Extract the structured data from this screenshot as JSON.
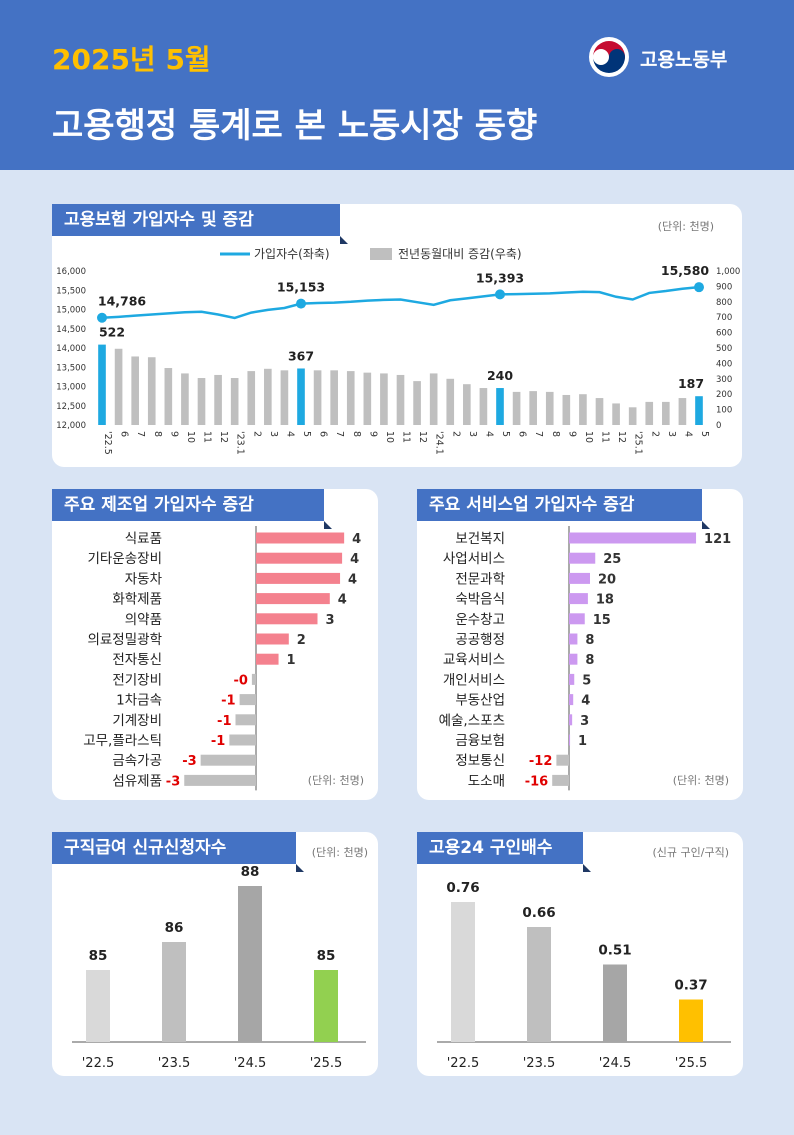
{
  "header": {
    "date": "2025년 5월",
    "title": "고용행정 통계로 본 노동시장 동향",
    "org": "고용노동부"
  },
  "colors": {
    "header_bg": "#4472c4",
    "accent_blue": "#1ea9e1",
    "gray_bar": "#bfbfbf",
    "red_bar": "#f4818e",
    "purple_bar": "#cc99f0",
    "green_bar": "#92d050",
    "yellow_bar": "#ffc000",
    "negative_text": "#e00000"
  },
  "chart_data": [
    {
      "id": "insurance",
      "type": "line+bar",
      "title": "고용보험 가입자수 및 증감",
      "unit": "(단위: 천명)",
      "legend": [
        "가입자수(좌축)",
        "전년동월대비 증감(우축)"
      ],
      "x": [
        "'22.5",
        "6",
        "7",
        "8",
        "9",
        "10",
        "11",
        "12",
        "'23.1",
        "2",
        "3",
        "4",
        "5",
        "6",
        "7",
        "8",
        "9",
        "10",
        "11",
        "12",
        "'24.1",
        "2",
        "3",
        "4",
        "5",
        "6",
        "7",
        "8",
        "9",
        "10",
        "11",
        "12",
        "'25.1",
        "2",
        "3",
        "4",
        "5"
      ],
      "line_values": [
        14786,
        14810,
        14840,
        14870,
        14900,
        14930,
        14940,
        14870,
        14780,
        14920,
        14990,
        15040,
        15153,
        15170,
        15180,
        15200,
        15230,
        15250,
        15260,
        15190,
        15120,
        15240,
        15290,
        15340,
        15393,
        15400,
        15410,
        15420,
        15440,
        15460,
        15450,
        15330,
        15260,
        15430,
        15480,
        15540,
        15580
      ],
      "bar_values": [
        522,
        495,
        445,
        440,
        370,
        335,
        305,
        325,
        305,
        350,
        365,
        355,
        367,
        355,
        355,
        350,
        340,
        335,
        325,
        285,
        335,
        300,
        265,
        240,
        240,
        215,
        220,
        215,
        195,
        200,
        175,
        140,
        115,
        150,
        150,
        175,
        187
      ],
      "highlight_indices": [
        0,
        12,
        24,
        36
      ],
      "line_labels": [
        {
          "index": 0,
          "text": "14,786"
        },
        {
          "index": 12,
          "text": "15,153"
        },
        {
          "index": 24,
          "text": "15,393"
        },
        {
          "index": 36,
          "text": "15,580"
        }
      ],
      "bar_labels": [
        {
          "index": 0,
          "text": "522"
        },
        {
          "index": 12,
          "text": "367"
        },
        {
          "index": 24,
          "text": "240"
        },
        {
          "index": 36,
          "text": "187"
        }
      ],
      "y_left": {
        "min": 12000,
        "max": 16000,
        "ticks": [
          "12,000",
          "12,500",
          "13,000",
          "13,500",
          "14,000",
          "14,500",
          "15,000",
          "15,500",
          "16,000"
        ]
      },
      "y_right": {
        "min": 0,
        "max": 1000,
        "ticks": [
          "0",
          "100",
          "200",
          "300",
          "400",
          "500",
          "600",
          "700",
          "800",
          "900",
          "1,000"
        ]
      }
    },
    {
      "id": "manufacturing",
      "type": "hbar",
      "title": "주요 제조업 가입자수 증감",
      "unit": "(단위: 천명)",
      "categories": [
        "식료품",
        "기타운송장비",
        "자동차",
        "화학제품",
        "의약품",
        "의료정밀광학",
        "전자통신",
        "전기장비",
        "1차금속",
        "기계장비",
        "고무,플라스틱",
        "금속가공",
        "섬유제품"
      ],
      "values": [
        4.3,
        4.2,
        4.1,
        3.6,
        3.0,
        1.6,
        1.1,
        -0.2,
        -0.8,
        -1.0,
        -1.3,
        -2.7,
        -3.5
      ],
      "labels": [
        "4",
        "4",
        "4",
        "4",
        "3",
        "2",
        "1",
        "-0",
        "-1",
        "-1",
        "-1",
        "-3",
        "-3"
      ]
    },
    {
      "id": "services",
      "type": "hbar",
      "title": "주요 서비스업 가입자수 증감",
      "unit": "(단위: 천명)",
      "categories": [
        "보건복지",
        "사업서비스",
        "전문과학",
        "숙박음식",
        "운수창고",
        "공공행정",
        "교육서비스",
        "개인서비스",
        "부동산업",
        "예술,스포츠",
        "금융보험",
        "정보통신",
        "도소매"
      ],
      "values": [
        121,
        25,
        20,
        18,
        15,
        8,
        8,
        5,
        4,
        3,
        1,
        -12,
        -16
      ],
      "labels": [
        "121",
        "25",
        "20",
        "18",
        "15",
        "8",
        "8",
        "5",
        "4",
        "3",
        "1",
        "-12",
        "-16"
      ]
    },
    {
      "id": "jobseeking",
      "type": "bar",
      "title": "구직급여 신규신청자수",
      "unit": "(단위: 천명)",
      "categories": [
        "'22.5",
        "'23.5",
        "'24.5",
        "'25.5"
      ],
      "values": [
        85,
        86,
        88,
        85
      ],
      "labels": [
        "85",
        "86",
        "88",
        "85"
      ],
      "colors": [
        "#d9d9d9",
        "#bfbfbf",
        "#a6a6a6",
        "#92d050"
      ]
    },
    {
      "id": "goyong24",
      "type": "bar",
      "title": "고용24 구인배수",
      "unit": "(신규 구인/구직)",
      "categories": [
        "'22.5",
        "'23.5",
        "'24.5",
        "'25.5"
      ],
      "values": [
        0.76,
        0.66,
        0.51,
        0.37
      ],
      "labels": [
        "0.76",
        "0.66",
        "0.51",
        "0.37"
      ],
      "colors": [
        "#d9d9d9",
        "#bfbfbf",
        "#a6a6a6",
        "#ffc000"
      ]
    }
  ]
}
